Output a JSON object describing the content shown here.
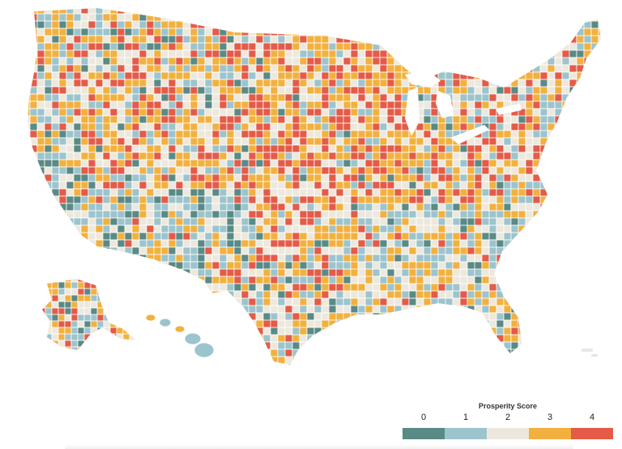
{
  "legend": {
    "title": "Prosperity Score",
    "scores": [
      "0",
      "1",
      "2",
      "3",
      "4"
    ],
    "colors": [
      "#5a8a85",
      "#9cc4cd",
      "#ede8dd",
      "#f2b13f",
      "#e45b48"
    ]
  },
  "map": {
    "subject": "County prosperity score choropleth of the United States",
    "regions": [
      "Contiguous United States",
      "Alaska",
      "Hawaii"
    ],
    "border_color": "#ffffff"
  }
}
